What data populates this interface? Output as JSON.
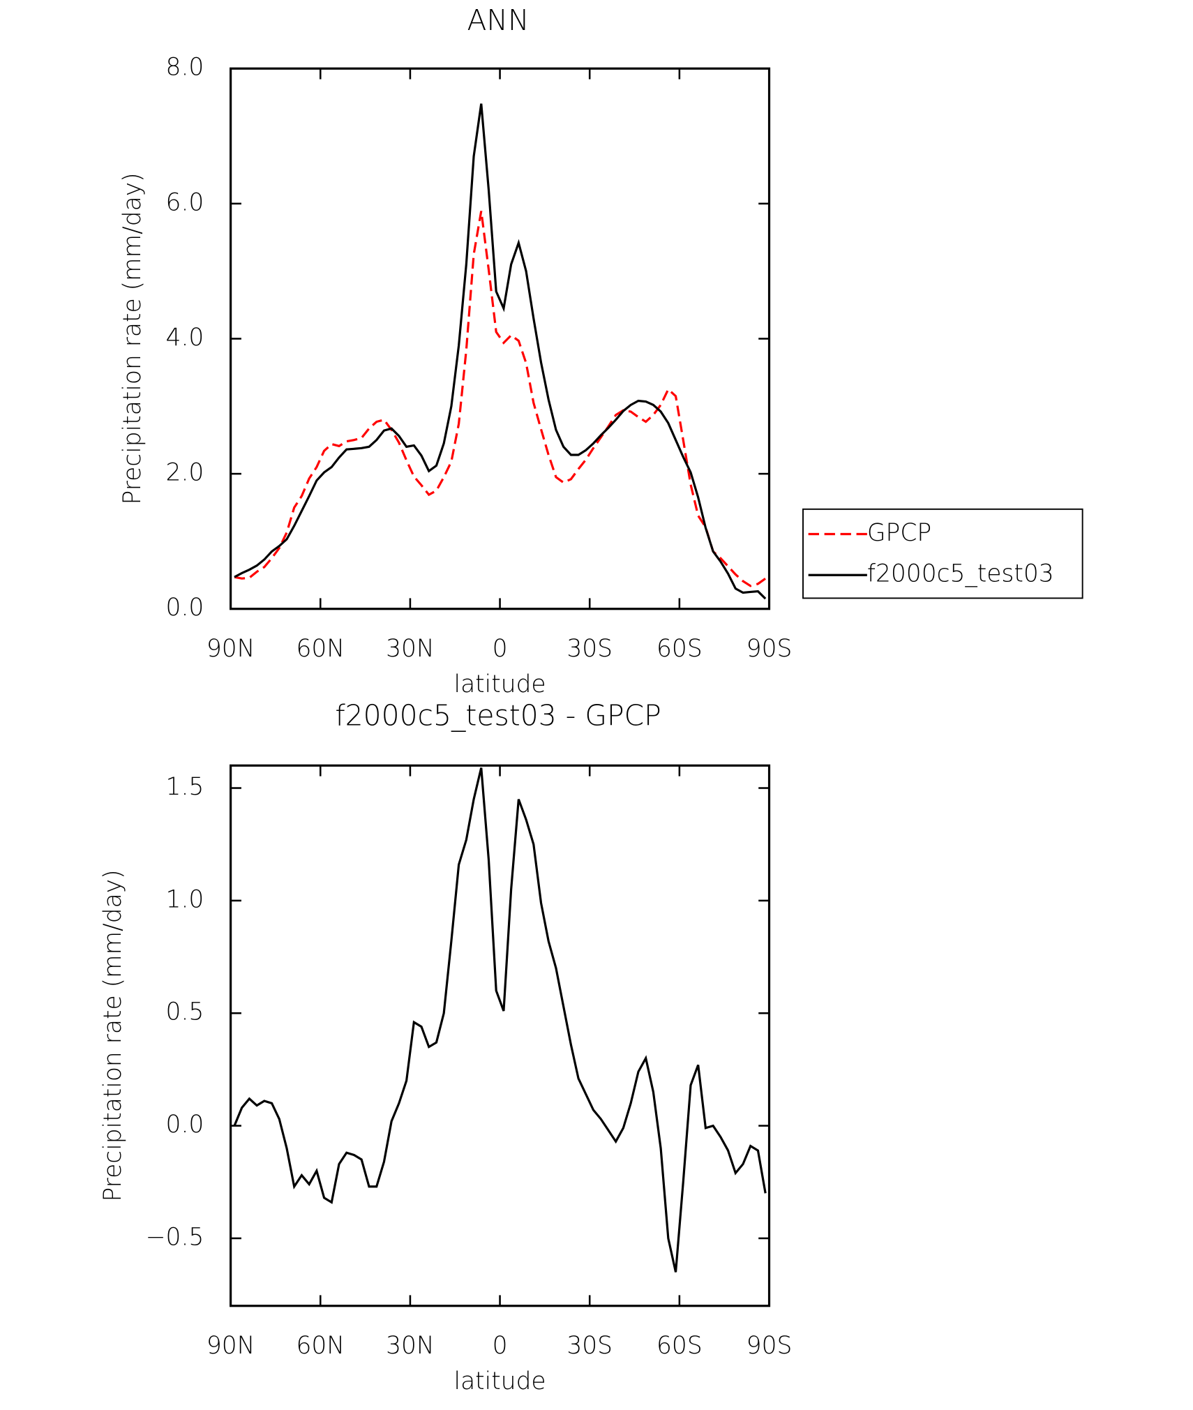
{
  "chart_data": [
    {
      "type": "line",
      "title": "ANN",
      "xlabel": "latitude",
      "ylabel": "Precipitation rate (mm/day)",
      "x": [
        88.75,
        86.25,
        83.75,
        81.25,
        78.75,
        76.25,
        73.75,
        71.25,
        68.75,
        66.25,
        63.75,
        61.25,
        58.75,
        56.25,
        53.75,
        51.25,
        48.75,
        46.25,
        43.75,
        41.25,
        38.75,
        36.25,
        33.75,
        31.25,
        28.75,
        26.25,
        23.75,
        21.25,
        18.75,
        16.25,
        13.75,
        11.25,
        8.75,
        6.25,
        3.75,
        1.25,
        -1.25,
        -3.75,
        -6.25,
        -8.75,
        -11.25,
        -13.75,
        -16.25,
        -18.75,
        -21.25,
        -23.75,
        -26.25,
        -28.75,
        -31.25,
        -33.75,
        -36.25,
        -38.75,
        -41.25,
        -43.75,
        -46.25,
        -48.75,
        -51.25,
        -53.75,
        -56.25,
        -58.75,
        -61.25,
        -63.75,
        -66.25,
        -68.75,
        -71.25,
        -73.75,
        -76.25,
        -78.75,
        -81.25,
        -83.75,
        -86.25,
        -88.75
      ],
      "xlim": [
        90,
        -90
      ],
      "xticks": [
        {
          "value": 90,
          "label": "90N"
        },
        {
          "value": 60,
          "label": "60N"
        },
        {
          "value": 30,
          "label": "30N"
        },
        0,
        {
          "value": -30,
          "label": "30S"
        },
        {
          "value": -60,
          "label": "60S"
        },
        {
          "value": -90,
          "label": "90S"
        }
      ],
      "ylim": [
        0,
        8
      ],
      "yticks": [
        {
          "value": 0,
          "label": "0.0"
        },
        {
          "value": 2,
          "label": "2.0"
        },
        {
          "value": 4,
          "label": "4.0"
        },
        {
          "value": 6,
          "label": "6.0"
        },
        {
          "value": 8,
          "label": "8.0"
        }
      ],
      "legend": "right",
      "series": [
        {
          "name": "GPCP",
          "color": "#ff0000",
          "dash": true,
          "values": [
            0.47,
            0.45,
            0.46,
            0.55,
            0.62,
            0.75,
            0.9,
            1.13,
            1.5,
            1.67,
            1.93,
            2.1,
            2.34,
            2.44,
            2.41,
            2.48,
            2.5,
            2.53,
            2.67,
            2.77,
            2.8,
            2.65,
            2.46,
            2.2,
            1.96,
            1.83,
            1.69,
            1.75,
            1.95,
            2.18,
            2.74,
            3.83,
            5.25,
            5.89,
            5.02,
            4.1,
            3.94,
            4.05,
            3.97,
            3.64,
            3.05,
            2.66,
            2.28,
            1.95,
            1.87,
            1.92,
            2.07,
            2.21,
            2.38,
            2.54,
            2.7,
            2.87,
            2.94,
            2.92,
            2.84,
            2.77,
            2.87,
            3.02,
            3.25,
            3.15,
            2.5,
            1.84,
            1.38,
            1.21,
            0.85,
            0.75,
            0.63,
            0.51,
            0.41,
            0.34,
            0.37,
            0.45
          ]
        },
        {
          "name": "f2000c5_test03",
          "color": "#000000",
          "dash": false,
          "values": [
            0.47,
            0.53,
            0.58,
            0.64,
            0.73,
            0.85,
            0.93,
            1.03,
            1.23,
            1.45,
            1.67,
            1.9,
            2.02,
            2.1,
            2.24,
            2.36,
            2.37,
            2.38,
            2.4,
            2.5,
            2.64,
            2.67,
            2.56,
            2.4,
            2.42,
            2.27,
            2.04,
            2.12,
            2.45,
            3.0,
            3.9,
            5.1,
            6.7,
            7.48,
            6.2,
            4.7,
            4.45,
            5.1,
            5.42,
            5.0,
            4.3,
            3.65,
            3.1,
            2.65,
            2.4,
            2.28,
            2.28,
            2.35,
            2.45,
            2.57,
            2.68,
            2.8,
            2.93,
            3.02,
            3.08,
            3.07,
            3.02,
            2.92,
            2.75,
            2.5,
            2.25,
            2.02,
            1.65,
            1.2,
            0.85,
            0.7,
            0.52,
            0.3,
            0.24,
            0.25,
            0.26,
            0.15
          ]
        }
      ]
    },
    {
      "type": "line",
      "title": "f2000c5_test03 - GPCP",
      "xlabel": "latitude",
      "ylabel": "Precipitation rate (mm/day)",
      "x": [
        88.75,
        86.25,
        83.75,
        81.25,
        78.75,
        76.25,
        73.75,
        71.25,
        68.75,
        66.25,
        63.75,
        61.25,
        58.75,
        56.25,
        53.75,
        51.25,
        48.75,
        46.25,
        43.75,
        41.25,
        38.75,
        36.25,
        33.75,
        31.25,
        28.75,
        26.25,
        23.75,
        21.25,
        18.75,
        16.25,
        13.75,
        11.25,
        8.75,
        6.25,
        3.75,
        1.25,
        -1.25,
        -3.75,
        -6.25,
        -8.75,
        -11.25,
        -13.75,
        -16.25,
        -18.75,
        -21.25,
        -23.75,
        -26.25,
        -28.75,
        -31.25,
        -33.75,
        -36.25,
        -38.75,
        -41.25,
        -43.75,
        -46.25,
        -48.75,
        -51.25,
        -53.75,
        -56.25,
        -58.75,
        -61.25,
        -63.75,
        -66.25,
        -68.75,
        -71.25,
        -73.75,
        -76.25,
        -78.75,
        -81.25,
        -83.75,
        -86.25,
        -88.75
      ],
      "xlim": [
        90,
        -90
      ],
      "xticks": [
        {
          "value": 90,
          "label": "90N"
        },
        {
          "value": 60,
          "label": "60N"
        },
        {
          "value": 30,
          "label": "30N"
        },
        0,
        {
          "value": -30,
          "label": "30S"
        },
        {
          "value": -60,
          "label": "60S"
        },
        {
          "value": -90,
          "label": "90S"
        }
      ],
      "ylim": [
        -0.8,
        1.6
      ],
      "yticks": [
        {
          "value": -0.5,
          "label": "−0.5"
        },
        {
          "value": 0,
          "label": "0.0"
        },
        0.5,
        {
          "value": 1,
          "label": "1.0"
        },
        1.5
      ],
      "series": [
        {
          "color": "#000000",
          "values": [
            0.0,
            0.08,
            0.12,
            0.09,
            0.11,
            0.1,
            0.03,
            -0.1,
            -0.27,
            -0.22,
            -0.26,
            -0.2,
            -0.32,
            -0.34,
            -0.17,
            -0.12,
            -0.13,
            -0.15,
            -0.27,
            -0.27,
            -0.16,
            0.02,
            0.1,
            0.2,
            0.46,
            0.44,
            0.35,
            0.37,
            0.5,
            0.82,
            1.16,
            1.27,
            1.45,
            1.59,
            1.18,
            0.6,
            0.51,
            1.05,
            1.45,
            1.36,
            1.25,
            0.99,
            0.82,
            0.7,
            0.53,
            0.36,
            0.21,
            0.14,
            0.07,
            0.03,
            -0.02,
            -0.07,
            -0.01,
            0.1,
            0.24,
            0.3,
            0.15,
            -0.1,
            -0.5,
            -0.65,
            -0.25,
            0.18,
            0.27,
            -0.01,
            0.0,
            -0.05,
            -0.11,
            -0.21,
            -0.17,
            -0.09,
            -0.11,
            -0.3
          ]
        }
      ]
    }
  ]
}
